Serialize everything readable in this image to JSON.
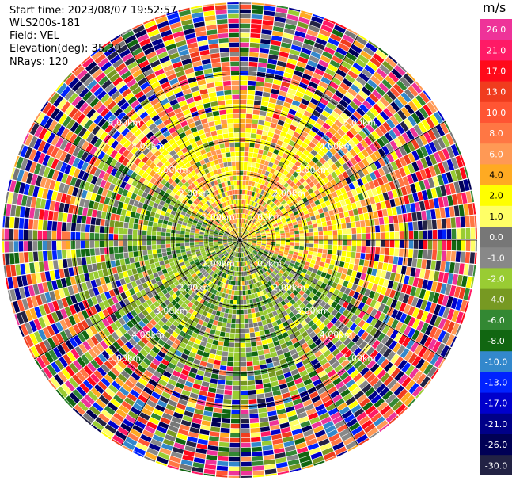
{
  "header": {
    "start_time": "Start time: 2023/08/07 19:52:57",
    "instrument": "WLS200s-181",
    "field": "Field: VEL",
    "elevation": "Elevation(deg): 35.30",
    "nrays": "NRays: 120"
  },
  "colorbar": {
    "unit": "m/s",
    "ticks": [
      "26.0",
      "21.0",
      "17.0",
      "13.0",
      "10.0",
      "8.0",
      "6.0",
      "4.0",
      "2.0",
      "1.0",
      "0.0",
      "-1.0",
      "-2.0",
      "-4.0",
      "-6.0",
      "-8.0",
      "-10.0",
      "-13.0",
      "-17.0",
      "-21.0",
      "-26.0",
      "-30.0"
    ],
    "colors": [
      "#ee3399",
      "#ff1a66",
      "#ff0a1a",
      "#f03c1e",
      "#ff5533",
      "#ff7744",
      "#ff9955",
      "#ffaa22",
      "#ffff00",
      "#ffff66",
      "#777777",
      "#888888",
      "#99cc33",
      "#779922",
      "#338833",
      "#116611",
      "#3388cc",
      "#0022ff",
      "#0000cc",
      "#000088",
      "#000055",
      "#222244"
    ]
  },
  "chart_data": {
    "type": "ppi",
    "field": "VEL",
    "units": "m/s",
    "elevation_deg": 35.3,
    "n_rays": 120,
    "range_rings_km": [
      "1.00km",
      "2.00km",
      "3.00km",
      "4.00km",
      "5.00km"
    ],
    "range_ring_values_km": [
      1,
      2,
      3,
      4,
      5
    ],
    "spoke_angles_deg": [
      0,
      30,
      60,
      90,
      120,
      150,
      180,
      210,
      240,
      270,
      300,
      330
    ],
    "velocity_pattern": {
      "inner_north_east": "2.0 to 6.0 (yellow/orange)",
      "inner_south_west": "-1.0 to -6.0 (green/grey)",
      "outer_ranges": "noisy, all values -30.0 to 26.0"
    }
  }
}
